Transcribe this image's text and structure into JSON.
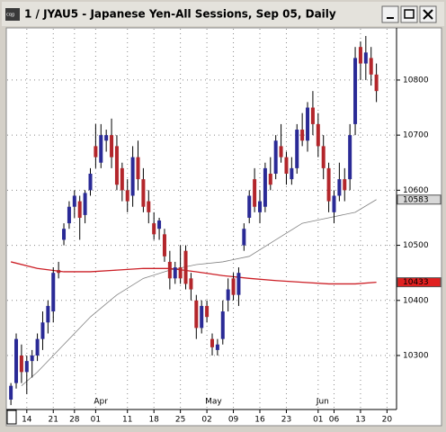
{
  "chart_data": {
    "type": "candlestick",
    "title": "1 / JYAU5 - Japanese Yen-All Sessions, Sep 05, Daily",
    "up_color": "#2a2a96",
    "down_color": "#b3262b",
    "grid": true,
    "xlim": [
      -0.7,
      72.8
    ],
    "ylim": [
      10202,
      10893
    ],
    "yticks": [
      10300,
      10400,
      10500,
      10600,
      10700,
      10800
    ],
    "xticks": [
      {
        "value": 3,
        "label": "14"
      },
      {
        "value": 8,
        "label": "21"
      },
      {
        "value": 12,
        "label": "28"
      },
      {
        "value": 16,
        "label": "01"
      },
      {
        "value": 22,
        "label": "11"
      },
      {
        "value": 27,
        "label": "18"
      },
      {
        "value": 32,
        "label": "25"
      },
      {
        "value": 37,
        "label": "02"
      },
      {
        "value": 42,
        "label": "09"
      },
      {
        "value": 47,
        "label": "16"
      },
      {
        "value": 52,
        "label": "23"
      },
      {
        "value": 58,
        "label": "01"
      },
      {
        "value": 61,
        "label": "06"
      },
      {
        "value": 66,
        "label": "13"
      },
      {
        "value": 71,
        "label": "20"
      }
    ],
    "months": [
      {
        "x": 16,
        "label": "Apr"
      },
      {
        "x": 37,
        "label": "May"
      },
      {
        "x": 58,
        "label": "Jun"
      }
    ],
    "candles": [
      [
        10220,
        10250,
        10210,
        10245
      ],
      [
        10250,
        10340,
        10240,
        10330
      ],
      [
        10300,
        10320,
        10250,
        10270
      ],
      [
        10270,
        10300,
        10230,
        10290
      ],
      [
        10290,
        10310,
        10260,
        10300
      ],
      [
        10300,
        10340,
        10290,
        10330
      ],
      [
        10330,
        10380,
        10310,
        10360
      ],
      [
        10360,
        10400,
        10340,
        10390
      ],
      [
        10380,
        10460,
        10360,
        10450
      ],
      [
        10455,
        10470,
        10440,
        10450
      ],
      [
        10510,
        10540,
        10500,
        10530
      ],
      [
        10540,
        10580,
        10530,
        10570
      ],
      [
        10570,
        10600,
        10550,
        10590
      ],
      [
        10580,
        10590,
        10510,
        10550
      ],
      [
        10555,
        10600,
        10540,
        10595
      ],
      [
        10600,
        10640,
        10590,
        10630
      ],
      [
        10680,
        10720,
        10640,
        10660
      ],
      [
        10650,
        10720,
        10640,
        10700
      ],
      [
        10690,
        10710,
        10670,
        10700
      ],
      [
        10700,
        10730,
        10640,
        10660
      ],
      [
        10680,
        10700,
        10600,
        10610
      ],
      [
        10640,
        10650,
        10580,
        10600
      ],
      [
        10600,
        10620,
        10560,
        10580
      ],
      [
        10590,
        10680,
        10570,
        10660
      ],
      [
        10660,
        10690,
        10600,
        10620
      ],
      [
        10620,
        10640,
        10560,
        10570
      ],
      [
        10580,
        10600,
        10540,
        10560
      ],
      [
        10540,
        10560,
        10510,
        10520
      ],
      [
        10530,
        10550,
        10510,
        10545
      ],
      [
        10520,
        10530,
        10470,
        10480
      ],
      [
        10470,
        10490,
        10420,
        10440
      ],
      [
        10440,
        10470,
        10430,
        10460
      ],
      [
        10460,
        10500,
        10430,
        10440
      ],
      [
        10490,
        10500,
        10420,
        10430
      ],
      [
        10440,
        10450,
        10400,
        10420
      ],
      [
        10400,
        10410,
        10330,
        10350
      ],
      [
        10350,
        10400,
        10340,
        10390
      ],
      [
        10390,
        10400,
        10360,
        10370
      ],
      [
        10330,
        10340,
        10300,
        10315
      ],
      [
        10310,
        10330,
        10300,
        10320
      ],
      [
        10330,
        10400,
        10320,
        10380
      ],
      [
        10400,
        10440,
        10380,
        10420
      ],
      [
        10440,
        10450,
        10400,
        10410
      ],
      [
        10410,
        10460,
        10390,
        10450
      ],
      [
        10500,
        10540,
        10490,
        10530
      ],
      [
        10550,
        10600,
        10540,
        10590
      ],
      [
        10620,
        10640,
        10560,
        10570
      ],
      [
        10560,
        10600,
        10540,
        10580
      ],
      [
        10570,
        10650,
        10560,
        10640
      ],
      [
        10630,
        10660,
        10600,
        10610
      ],
      [
        10630,
        10700,
        10620,
        10690
      ],
      [
        10680,
        10720,
        10650,
        10660
      ],
      [
        10660,
        10670,
        10610,
        10630
      ],
      [
        10620,
        10660,
        10610,
        10640
      ],
      [
        10640,
        10720,
        10630,
        10710
      ],
      [
        10710,
        10740,
        10680,
        10690
      ],
      [
        10690,
        10760,
        10670,
        10750
      ],
      [
        10750,
        10780,
        10700,
        10720
      ],
      [
        10720,
        10740,
        10660,
        10680
      ],
      [
        10680,
        10700,
        10620,
        10640
      ],
      [
        10640,
        10650,
        10560,
        10580
      ],
      [
        10560,
        10600,
        10540,
        10590
      ],
      [
        10590,
        10650,
        10580,
        10620
      ],
      [
        10620,
        10640,
        10580,
        10600
      ],
      [
        10620,
        10720,
        10600,
        10700
      ],
      [
        10720,
        10860,
        10700,
        10840
      ],
      [
        10860,
        10870,
        10800,
        10830
      ],
      [
        10830,
        10880,
        10800,
        10850
      ],
      [
        10840,
        10860,
        10790,
        10810
      ],
      [
        10810,
        10830,
        10760,
        10780
      ]
    ],
    "series": [
      {
        "color": "#808080",
        "x": [
          2,
          5,
          10,
          15,
          20,
          25,
          30,
          35,
          40,
          45,
          50,
          55,
          60,
          65,
          69
        ],
        "values": [
          10245,
          10270,
          10320,
          10370,
          10410,
          10440,
          10455,
          10465,
          10470,
          10480,
          10510,
          10540,
          10550,
          10560,
          10583
        ]
      },
      {
        "color": "#cc1f26",
        "x": [
          0,
          5,
          10,
          15,
          20,
          25,
          30,
          35,
          40,
          45,
          50,
          55,
          60,
          65,
          69
        ],
        "values": [
          10470,
          10458,
          10452,
          10452,
          10455,
          10458,
          10458,
          10452,
          10445,
          10440,
          10436,
          10433,
          10430,
          10430,
          10433
        ]
      }
    ],
    "price_labels": [
      {
        "value": 10583,
        "color": "#d8d8d8"
      },
      {
        "value": 10433,
        "color": "#e02020"
      }
    ]
  }
}
